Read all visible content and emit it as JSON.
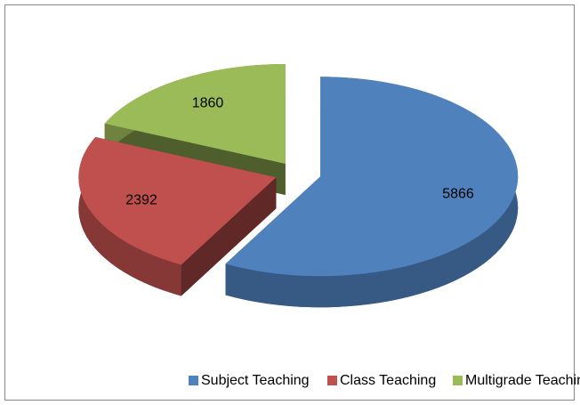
{
  "chart_data": {
    "type": "pie",
    "categories": [
      "Subject Teaching",
      "Class Teaching",
      "Multigrade Teaching"
    ],
    "values": [
      5866,
      2392,
      1860
    ],
    "colors": [
      "#4f81bd",
      "#c0504d",
      "#9bbb59"
    ],
    "legend": "bottom"
  }
}
